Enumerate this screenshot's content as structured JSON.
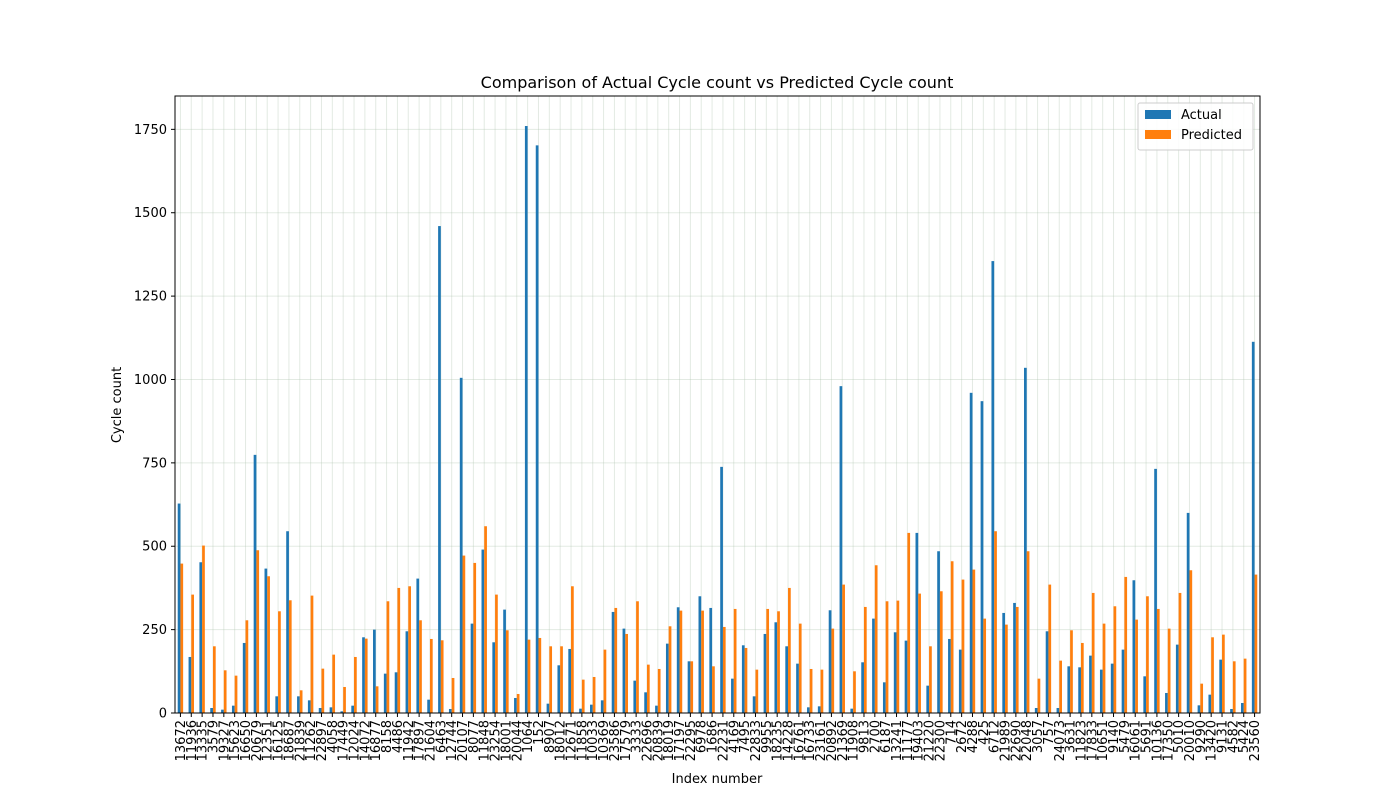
{
  "chart_data": {
    "type": "bar",
    "title": "Comparison of Actual Cycle count vs Predicted Cycle count",
    "xlabel": "Index number",
    "ylabel": "Cycle count",
    "ylim": [
      0,
      1850
    ],
    "yticks": [
      0,
      250,
      500,
      750,
      1000,
      1250,
      1500,
      1750
    ],
    "grid": true,
    "legend_position": "top-right",
    "categories": [
      "13672",
      "11936",
      "13335",
      "3579",
      "19327",
      "15623",
      "16650",
      "20679",
      "12351",
      "16125",
      "18687",
      "21839",
      "11262",
      "22897",
      "4058",
      "17449",
      "12024",
      "14072",
      "16877",
      "8158",
      "4486",
      "11942",
      "17897",
      "21604",
      "6463",
      "12744",
      "20107",
      "8077",
      "11848",
      "23254",
      "18001",
      "20044",
      "1064",
      "152",
      "8907",
      "18012",
      "12671",
      "11858",
      "10033",
      "10369",
      "23586",
      "17579",
      "3333",
      "22696",
      "20839",
      "18019",
      "17197",
      "22295",
      "6978",
      "1686",
      "22231",
      "4169",
      "7495",
      "22833",
      "9955",
      "18235",
      "14228",
      "16761",
      "16733",
      "23161",
      "20892",
      "21369",
      "11908",
      "9813",
      "2700",
      "6187",
      "13241",
      "11177",
      "19403",
      "21220",
      "22300",
      "714",
      "2672",
      "4288",
      "425",
      "6712",
      "21989",
      "22690",
      "22048",
      "3057",
      "757",
      "24073",
      "3631",
      "11823",
      "17833",
      "10651",
      "9140",
      "5479",
      "16061",
      "5691",
      "10136",
      "17350",
      "5010",
      "20010",
      "9290",
      "13420",
      "9131",
      "4582",
      "5424",
      "23560"
    ],
    "series": [
      {
        "name": "Actual",
        "color": "#1f77b4",
        "values": [
          628,
          168,
          452,
          15,
          10,
          22,
          210,
          774,
          433,
          50,
          545,
          50,
          38,
          15,
          17,
          5,
          22,
          227,
          250,
          118,
          122,
          245,
          403,
          40,
          1460,
          12,
          1005,
          268,
          490,
          212,
          310,
          45,
          1760,
          1702,
          28,
          143,
          192,
          13,
          25,
          38,
          303,
          253,
          97,
          62,
          22,
          208,
          317,
          155,
          350,
          315,
          738,
          103,
          203,
          50,
          237,
          272,
          200,
          148,
          17,
          20,
          308,
          980,
          13,
          152,
          283,
          92,
          242,
          217,
          540,
          82,
          485,
          222,
          190,
          960,
          935,
          1355,
          300,
          330,
          1035,
          15,
          245,
          15,
          140,
          137,
          172,
          130,
          148,
          190,
          398,
          110,
          732,
          60,
          205,
          600,
          23,
          55,
          160,
          12,
          30,
          1113
        ]
      },
      {
        "name": "Predicted",
        "color": "#ff7f0e",
        "values": [
          448,
          355,
          502,
          200,
          128,
          112,
          278,
          488,
          410,
          305,
          338,
          68,
          352,
          133,
          175,
          78,
          168,
          223,
          80,
          335,
          375,
          380,
          278,
          222,
          218,
          105,
          472,
          450,
          560,
          355,
          248,
          57,
          220,
          225,
          200,
          200,
          380,
          100,
          108,
          190,
          315,
          237,
          335,
          145,
          132,
          260,
          307,
          155,
          307,
          140,
          258,
          312,
          195,
          130,
          312,
          305,
          375,
          268,
          132,
          130,
          253,
          385,
          125,
          318,
          443,
          335,
          337,
          540,
          358,
          200,
          365,
          455,
          400,
          430,
          283,
          545,
          265,
          318,
          485,
          103,
          385,
          157,
          248,
          210,
          360,
          268,
          320,
          408,
          280,
          350,
          312,
          253,
          360,
          428,
          88,
          227,
          235,
          155,
          163,
          415
        ]
      }
    ]
  }
}
